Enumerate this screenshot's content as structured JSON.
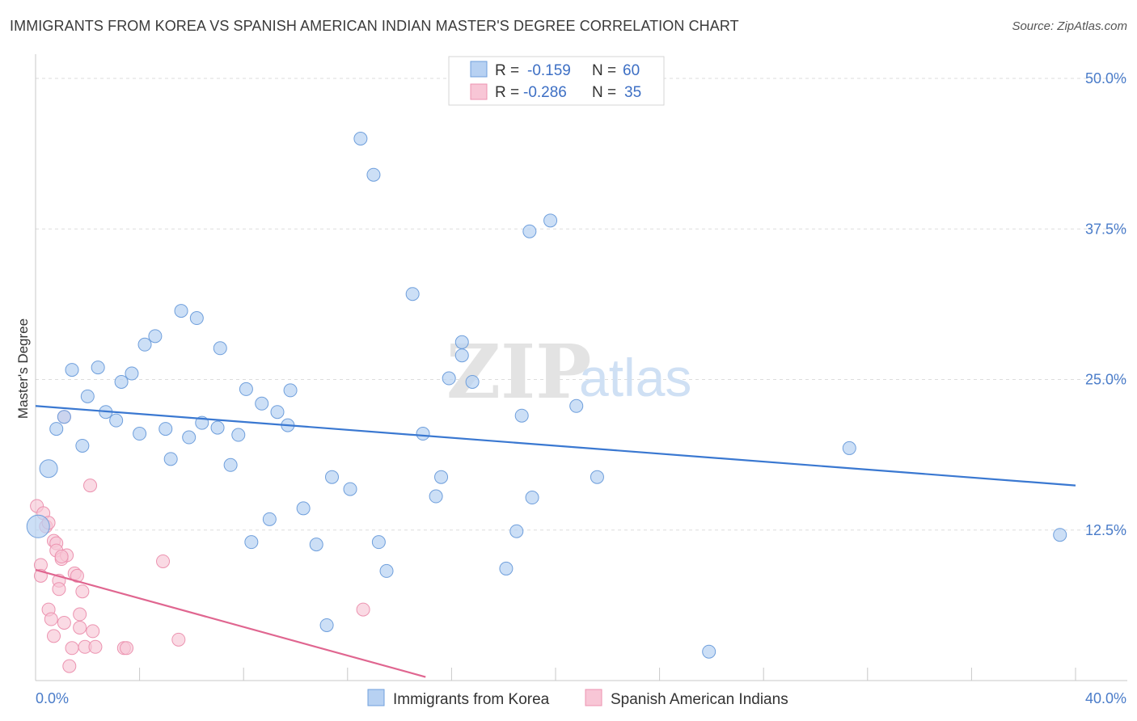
{
  "title": "IMMIGRANTS FROM KOREA VS SPANISH AMERICAN INDIAN MASTER'S DEGREE CORRELATION CHART",
  "source": "Source: ZipAtlas.com",
  "watermark": {
    "zip": "ZIP",
    "atlas": "atlas"
  },
  "legend": {
    "r_label": "R =",
    "n_label": "N =",
    "series1": {
      "r": "-0.159",
      "n": "60"
    },
    "series2": {
      "r": "-0.286",
      "n": "35"
    }
  },
  "colors": {
    "korea_fill": "#b7d1f2",
    "korea_stroke": "#6f9fdc",
    "korea_line": "#3a78d1",
    "spanish_fill": "#f8c6d6",
    "spanish_stroke": "#ec93b0",
    "spanish_line": "#e06690",
    "axis_text": "#4a7cc9",
    "grid": "#dddddd"
  },
  "chart_data": {
    "type": "scatter",
    "ylabel": "Master's Degree",
    "xlim": [
      0,
      40
    ],
    "ylim": [
      0,
      50
    ],
    "x_tick_labels": [
      "0.0%",
      "40.0%"
    ],
    "y_ticks": [
      12.5,
      25.0,
      37.5,
      50.0
    ],
    "y_tick_labels": [
      "12.5%",
      "25.0%",
      "37.5%",
      "50.0%"
    ],
    "grid": true,
    "legend_position": "top-center",
    "series": [
      {
        "name": "Immigrants from Korea",
        "r": -0.159,
        "n": 60,
        "trend": {
          "x": [
            0,
            40
          ],
          "y": [
            22.8,
            16.2
          ]
        },
        "points": [
          [
            0.1,
            12.8
          ],
          [
            0.5,
            17.6
          ],
          [
            0.8,
            20.9
          ],
          [
            1.1,
            21.9
          ],
          [
            1.4,
            25.8
          ],
          [
            1.8,
            19.5
          ],
          [
            2.0,
            23.6
          ],
          [
            2.4,
            26.0
          ],
          [
            2.7,
            22.3
          ],
          [
            3.1,
            21.6
          ],
          [
            3.3,
            24.8
          ],
          [
            3.7,
            25.5
          ],
          [
            4.0,
            20.5
          ],
          [
            4.2,
            27.9
          ],
          [
            4.6,
            28.6
          ],
          [
            5.0,
            20.9
          ],
          [
            5.2,
            18.4
          ],
          [
            5.6,
            30.7
          ],
          [
            5.9,
            20.2
          ],
          [
            6.2,
            30.1
          ],
          [
            6.4,
            21.4
          ],
          [
            7.0,
            21.0
          ],
          [
            7.1,
            27.6
          ],
          [
            7.5,
            17.9
          ],
          [
            7.8,
            20.4
          ],
          [
            8.1,
            24.2
          ],
          [
            8.3,
            11.5
          ],
          [
            8.7,
            23.0
          ],
          [
            9.0,
            13.4
          ],
          [
            9.3,
            22.3
          ],
          [
            9.7,
            21.2
          ],
          [
            9.8,
            24.1
          ],
          [
            10.3,
            14.3
          ],
          [
            10.8,
            11.3
          ],
          [
            11.2,
            4.6
          ],
          [
            11.4,
            16.9
          ],
          [
            12.1,
            15.9
          ],
          [
            12.5,
            45.0
          ],
          [
            13.0,
            42.0
          ],
          [
            13.2,
            11.5
          ],
          [
            13.5,
            9.1
          ],
          [
            14.5,
            32.1
          ],
          [
            14.9,
            20.5
          ],
          [
            15.4,
            15.3
          ],
          [
            15.6,
            16.9
          ],
          [
            15.9,
            25.1
          ],
          [
            16.4,
            28.1
          ],
          [
            16.4,
            27.0
          ],
          [
            16.8,
            24.8
          ],
          [
            18.1,
            9.3
          ],
          [
            18.5,
            12.4
          ],
          [
            18.7,
            22.0
          ],
          [
            19.0,
            37.3
          ],
          [
            19.1,
            15.2
          ],
          [
            19.8,
            38.2
          ],
          [
            20.8,
            22.8
          ],
          [
            21.6,
            16.9
          ],
          [
            25.9,
            2.4
          ],
          [
            31.3,
            19.3
          ],
          [
            39.4,
            12.1
          ]
        ]
      },
      {
        "name": "Spanish American Indians",
        "r": -0.286,
        "n": 35,
        "trend": {
          "x": [
            0,
            15.0
          ],
          "y": [
            9.2,
            0.3
          ]
        },
        "points": [
          [
            0.05,
            14.5
          ],
          [
            0.2,
            9.6
          ],
          [
            0.2,
            8.7
          ],
          [
            0.3,
            13.9
          ],
          [
            0.4,
            12.8
          ],
          [
            0.5,
            13.1
          ],
          [
            0.5,
            5.9
          ],
          [
            0.6,
            5.1
          ],
          [
            0.7,
            3.7
          ],
          [
            0.7,
            11.6
          ],
          [
            0.8,
            11.4
          ],
          [
            0.8,
            10.8
          ],
          [
            0.9,
            8.3
          ],
          [
            0.9,
            7.6
          ],
          [
            1.0,
            10.1
          ],
          [
            1.1,
            4.8
          ],
          [
            1.1,
            21.9
          ],
          [
            1.2,
            10.4
          ],
          [
            1.3,
            1.2
          ],
          [
            1.4,
            2.7
          ],
          [
            1.5,
            8.9
          ],
          [
            1.6,
            8.7
          ],
          [
            1.7,
            4.4
          ],
          [
            1.7,
            5.5
          ],
          [
            1.8,
            7.4
          ],
          [
            1.9,
            2.8
          ],
          [
            2.1,
            16.2
          ],
          [
            2.2,
            4.1
          ],
          [
            2.3,
            2.8
          ],
          [
            3.4,
            2.7
          ],
          [
            3.5,
            2.7
          ],
          [
            4.9,
            9.9
          ],
          [
            5.5,
            3.4
          ],
          [
            12.6,
            5.9
          ],
          [
            1.0,
            10.3
          ]
        ]
      }
    ]
  }
}
